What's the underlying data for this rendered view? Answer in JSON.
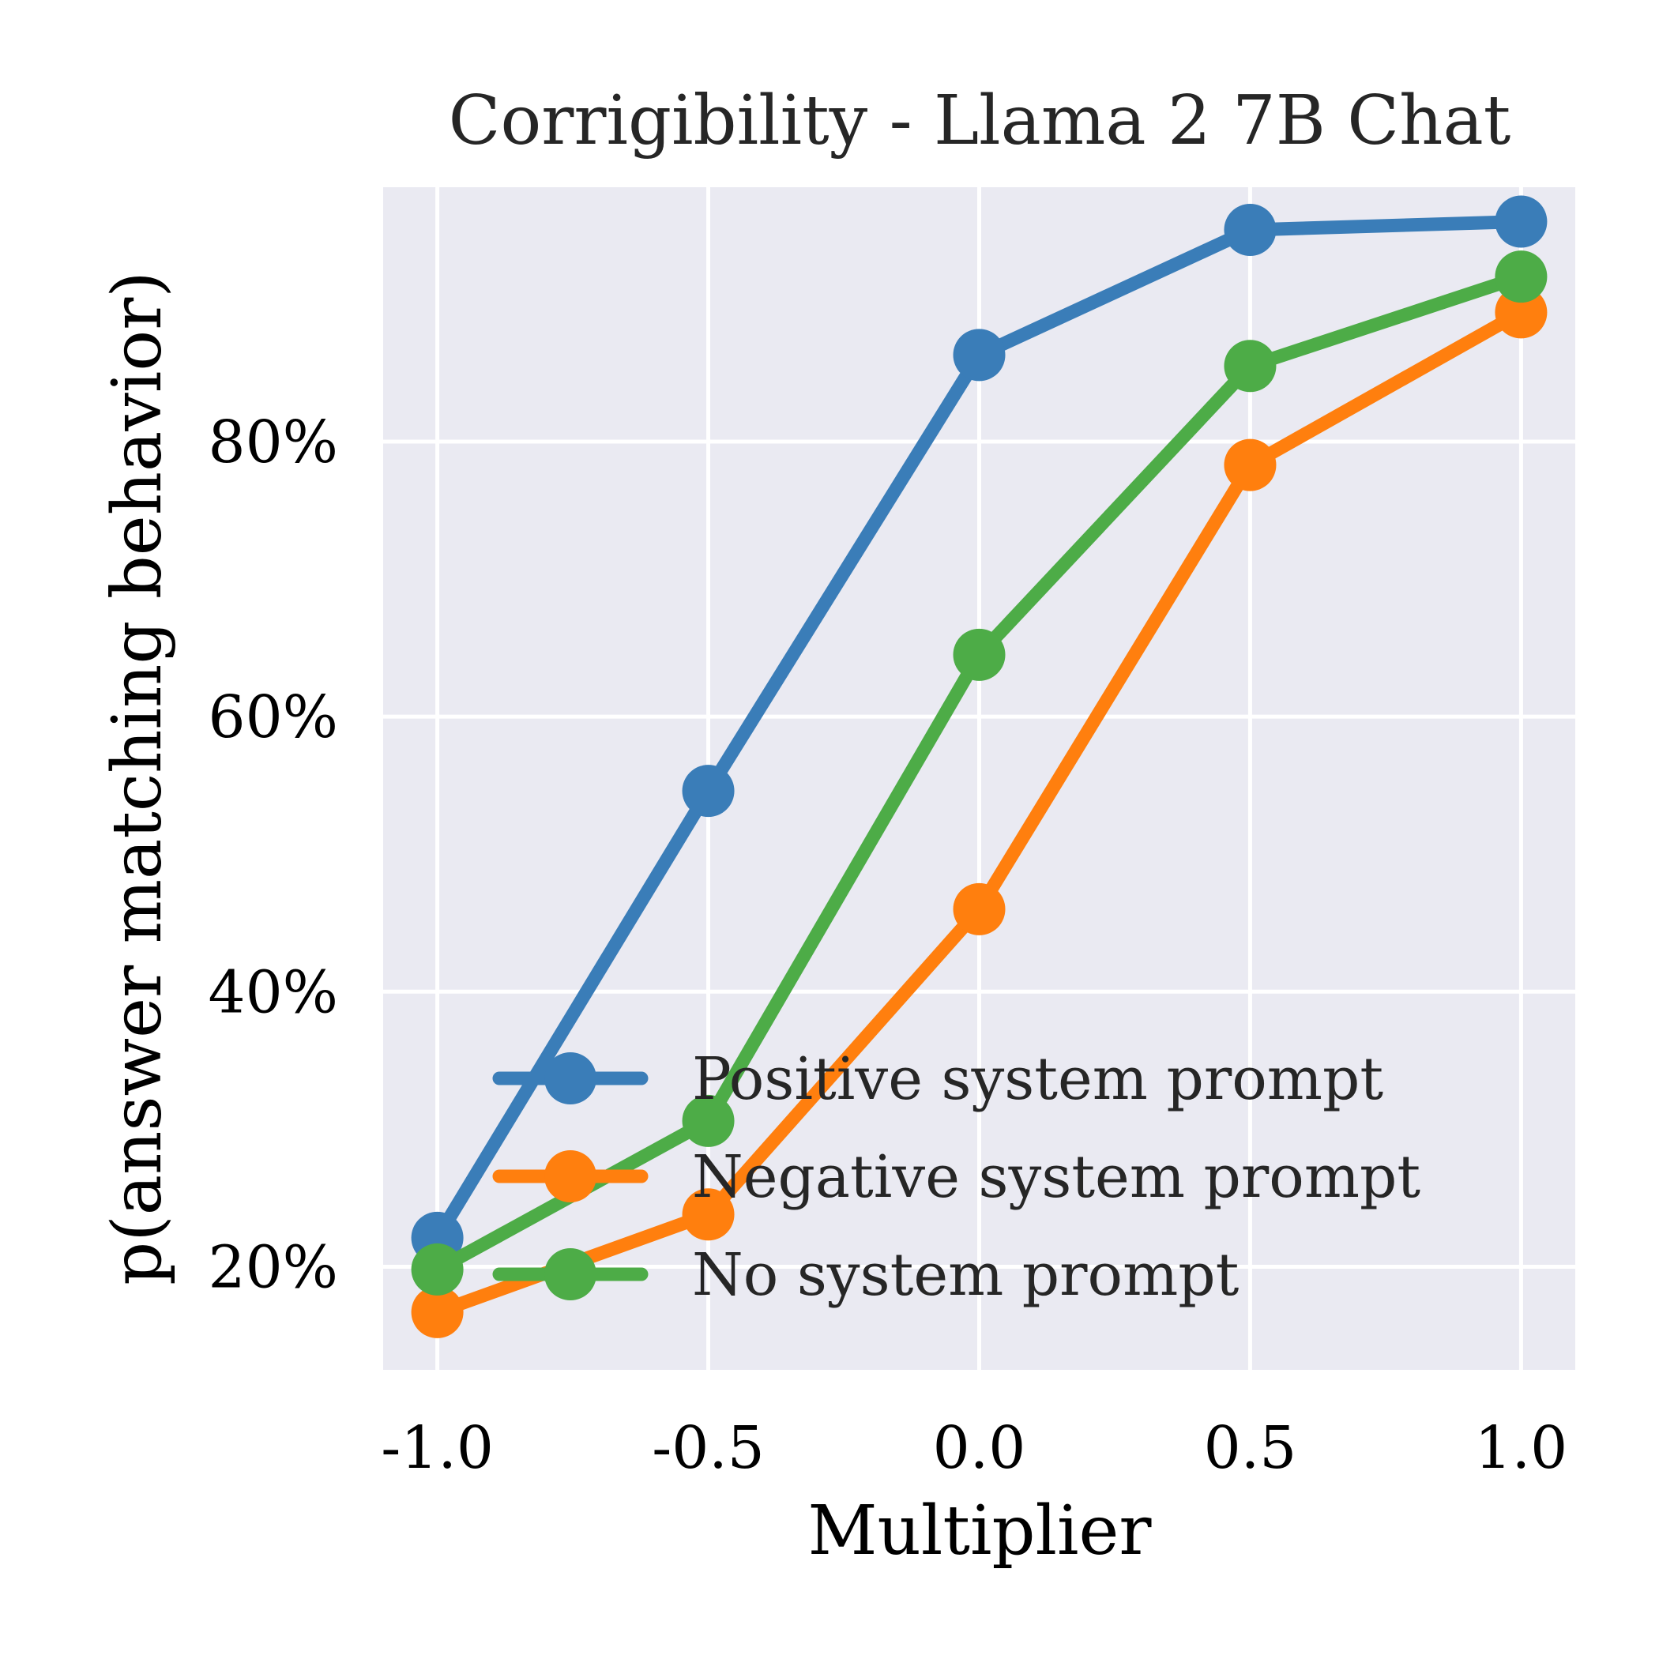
{
  "chart_data": {
    "type": "line",
    "title": "Corrigibility - Llama 2 7B Chat",
    "xlabel": "Multiplier",
    "ylabel": "p(answer matching behavior)",
    "x": [
      -1.0,
      -0.5,
      0.0,
      0.5,
      1.0
    ],
    "x_tick_labels": [
      "-1.0",
      "-0.5",
      "0.0",
      "0.5",
      "1.0"
    ],
    "y_ticks": [
      0.2,
      0.4,
      0.6,
      0.8
    ],
    "y_tick_labels": [
      "20%",
      "40%",
      "60%",
      "80%"
    ],
    "xlim": [
      -1.1,
      1.1
    ],
    "ylim": [
      0.125,
      0.985
    ],
    "grid": true,
    "legend_position": "lower-right",
    "series": [
      {
        "name": "Positive system prompt",
        "color": "#3a7db8",
        "values": [
          0.221,
          0.546,
          0.863,
          0.954,
          0.96
        ]
      },
      {
        "name": "Negative system prompt",
        "color": "#ff7f0e",
        "values": [
          0.167,
          0.238,
          0.46,
          0.783,
          0.894
        ]
      },
      {
        "name": "No system prompt",
        "color": "#4dac47",
        "values": [
          0.198,
          0.306,
          0.645,
          0.855,
          0.92
        ]
      }
    ]
  }
}
